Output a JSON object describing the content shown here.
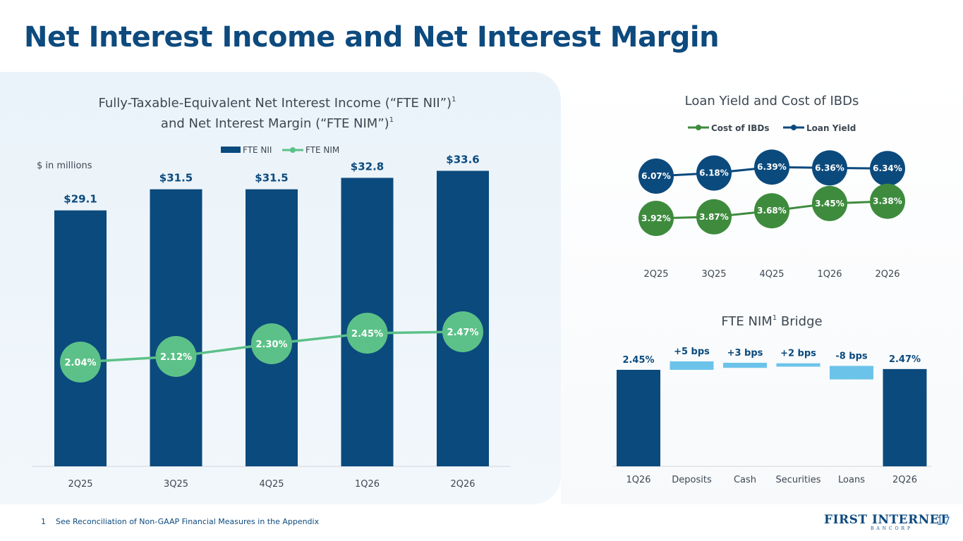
{
  "title": "Net Interest Income and Net Interest Margin",
  "footnote": {
    "marker": "1",
    "text": "See Reconciliation of Non-GAAP Financial Measures in the Appendix"
  },
  "logo": {
    "name": "FIRST INTERNET",
    "sub": "BANCORP"
  },
  "page_number": "17",
  "colors": {
    "navy": "#0b4a7d",
    "green_nim": "#5cc188",
    "green_cost": "#3e8b3e",
    "light_blue": "#6cc3ea",
    "gray": "#3d4752"
  },
  "chart_data": [
    {
      "type": "bar",
      "title_line1": "Fully-Taxable-Equivalent Net Interest Income (“FTE NII”)",
      "title_line2": "and Net Interest Margin (“FTE NIM”)",
      "title_sup": "1",
      "unit_label": "$ in millions",
      "categories": [
        "2Q25",
        "3Q25",
        "4Q25",
        "1Q26",
        "2Q26"
      ],
      "series": [
        {
          "name": "FTE NII",
          "values": [
            29.1,
            31.5,
            31.5,
            32.8,
            33.6
          ],
          "labels": [
            "$29.1",
            "$31.5",
            "$31.5",
            "$32.8",
            "$33.6"
          ]
        },
        {
          "name": "FTE NIM",
          "type": "line",
          "values": [
            2.04,
            2.12,
            2.3,
            2.45,
            2.47
          ],
          "labels": [
            "2.04%",
            "2.12%",
            "2.30%",
            "2.45%",
            "2.47%"
          ]
        }
      ],
      "ylim": [
        0,
        35
      ],
      "nim_ylim": [
        1.5,
        3.0
      ]
    },
    {
      "type": "line",
      "title": "Loan Yield and Cost of IBDs",
      "categories": [
        "2Q25",
        "3Q25",
        "4Q25",
        "1Q26",
        "2Q26"
      ],
      "series": [
        {
          "name": "Cost of IBDs",
          "values": [
            3.92,
            3.87,
            3.68,
            3.45,
            3.38
          ],
          "labels": [
            "3.92%",
            "3.87%",
            "3.68%",
            "3.45%",
            "3.38%"
          ]
        },
        {
          "name": "Loan Yield",
          "values": [
            6.07,
            6.18,
            6.39,
            6.36,
            6.34
          ],
          "labels": [
            "6.07%",
            "6.18%",
            "6.39%",
            "6.36%",
            "6.34%"
          ]
        }
      ],
      "ylim": [
        2.0,
        7.0
      ]
    },
    {
      "type": "bar",
      "subtype": "waterfall",
      "title": "FTE NIM",
      "title_sup": "1",
      "title_suffix": " Bridge",
      "categories": [
        "1Q26",
        "Deposits",
        "Cash",
        "Securities",
        "Loans",
        "2Q26"
      ],
      "values": [
        2.45,
        0.05,
        0.03,
        0.02,
        -0.08,
        2.47
      ],
      "labels": [
        "2.45%",
        "+5 bps",
        "+3 bps",
        "+2 bps",
        "-8 bps",
        "2.47%"
      ],
      "ylim": [
        0,
        2.6
      ]
    }
  ]
}
